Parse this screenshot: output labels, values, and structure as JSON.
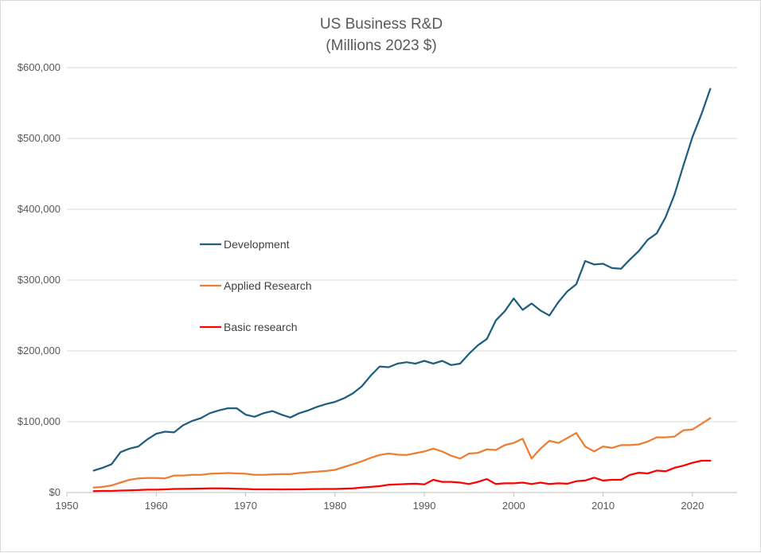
{
  "chart_data": {
    "type": "line",
    "title": [
      "US Business R&D",
      "(Millions 2023 $)"
    ],
    "xlabel": "",
    "ylabel": "",
    "xlim": [
      1950,
      2025
    ],
    "ylim": [
      0,
      600000
    ],
    "x_ticks": [
      1950,
      1960,
      1970,
      1980,
      1990,
      2000,
      2010,
      2020
    ],
    "y_ticks": [
      0,
      100000,
      200000,
      300000,
      400000,
      500000,
      600000
    ],
    "x_tick_labels": [
      "1950",
      "1960",
      "1970",
      "1980",
      "1990",
      "2000",
      "2010",
      "2020"
    ],
    "y_tick_labels": [
      "$0",
      "$100,000",
      "$200,000",
      "$300,000",
      "$400,000",
      "$500,000",
      "$600,000"
    ],
    "grid": "horizontal",
    "legend_position": "center-left",
    "x": [
      1953,
      1954,
      1955,
      1956,
      1957,
      1958,
      1959,
      1960,
      1961,
      1962,
      1963,
      1964,
      1965,
      1966,
      1967,
      1968,
      1969,
      1970,
      1971,
      1972,
      1973,
      1974,
      1975,
      1976,
      1977,
      1978,
      1979,
      1980,
      1981,
      1982,
      1983,
      1984,
      1985,
      1986,
      1987,
      1988,
      1989,
      1990,
      1991,
      1992,
      1993,
      1994,
      1995,
      1996,
      1997,
      1998,
      1999,
      2000,
      2001,
      2002,
      2003,
      2004,
      2005,
      2006,
      2007,
      2008,
      2009,
      2010,
      2011,
      2012,
      2013,
      2014,
      2015,
      2016,
      2017,
      2018,
      2019,
      2020,
      2021,
      2022
    ],
    "series": [
      {
        "name": "Development",
        "color": "#1F5E7E",
        "values": [
          31000,
          35000,
          40000,
          57000,
          62000,
          65000,
          75000,
          83000,
          86000,
          85000,
          95000,
          101000,
          105000,
          112000,
          116000,
          119000,
          119000,
          110000,
          107000,
          112000,
          115000,
          110000,
          106000,
          112000,
          116000,
          121000,
          125000,
          128000,
          133000,
          140000,
          150000,
          165000,
          178000,
          177000,
          182000,
          184000,
          182000,
          186000,
          182000,
          186000,
          180000,
          182000,
          196000,
          208000,
          217000,
          243000,
          256000,
          274000,
          258000,
          267000,
          257000,
          250000,
          269000,
          284000,
          294000,
          327000,
          322000,
          323000,
          317000,
          316000,
          329000,
          341000,
          357000,
          366000,
          389000,
          421000,
          462000,
          502000,
          534000,
          570000
        ]
      },
      {
        "name": "Applied Research",
        "color": "#ED7D31",
        "values": [
          7000,
          8000,
          10000,
          14000,
          18000,
          20000,
          20500,
          20500,
          20000,
          24000,
          24000,
          25000,
          25000,
          26500,
          27000,
          27500,
          27000,
          26500,
          25000,
          25000,
          25500,
          26000,
          26000,
          27500,
          28500,
          29500,
          30500,
          32000,
          36000,
          40000,
          44000,
          49000,
          53000,
          55000,
          53500,
          53000,
          55500,
          58000,
          62000,
          58000,
          52000,
          48000,
          55000,
          56000,
          61000,
          60000,
          67000,
          70000,
          76000,
          48000,
          62000,
          73000,
          70000,
          77000,
          84000,
          65000,
          58000,
          65000,
          63000,
          67000,
          67000,
          68000,
          72000,
          78000,
          78000,
          79000,
          88000,
          89000,
          97000,
          105000
        ]
      },
      {
        "name": "Basic research",
        "color": "#FF0000",
        "values": [
          2000,
          2200,
          2300,
          2800,
          3200,
          3500,
          4000,
          4000,
          4500,
          5000,
          5200,
          5300,
          5600,
          5800,
          5900,
          5700,
          5300,
          5000,
          4500,
          4500,
          4500,
          4400,
          4500,
          4500,
          4700,
          4900,
          5000,
          5100,
          5500,
          6000,
          7000,
          8000,
          9000,
          11000,
          11500,
          12000,
          12500,
          11500,
          18000,
          15000,
          15000,
          14000,
          12000,
          15000,
          19000,
          12000,
          13000,
          13000,
          14000,
          12000,
          14000,
          12000,
          13000,
          12500,
          16000,
          17000,
          21000,
          17000,
          18000,
          18000,
          25000,
          28000,
          27000,
          31000,
          30000,
          35000,
          38000,
          42000,
          45000,
          45000
        ]
      }
    ]
  }
}
